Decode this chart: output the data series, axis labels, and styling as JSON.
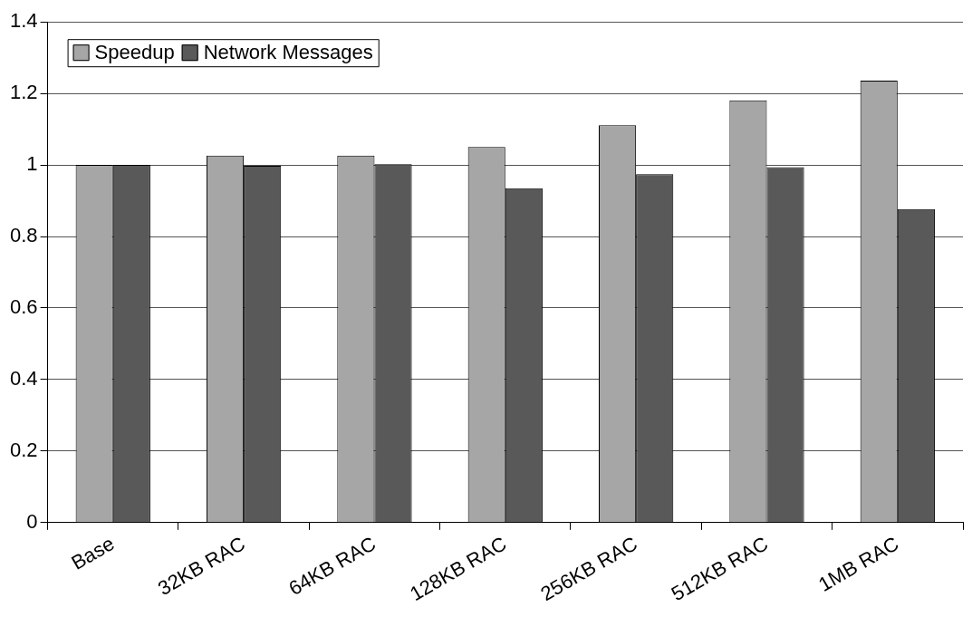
{
  "chart_data": {
    "type": "bar",
    "categories": [
      "Base",
      "32KB RAC",
      "64KB RAC",
      "128KB RAC",
      "256KB RAC",
      "512KB RAC",
      "1MB RAC"
    ],
    "series": [
      {
        "name": "Speedup",
        "color": "#a6a6a6",
        "values": [
          1.0,
          1.026,
          1.026,
          1.05,
          1.111,
          1.181,
          1.236
        ]
      },
      {
        "name": "Network Messages",
        "color": "#595959",
        "values": [
          1.0,
          0.998,
          1.002,
          0.935,
          0.974,
          0.994,
          0.877
        ]
      }
    ],
    "ylim": [
      0,
      1.4
    ],
    "yticks": [
      0,
      0.2,
      0.4,
      0.6,
      0.8,
      1,
      1.2,
      1.4
    ],
    "grid": "y",
    "legend": "top left"
  }
}
